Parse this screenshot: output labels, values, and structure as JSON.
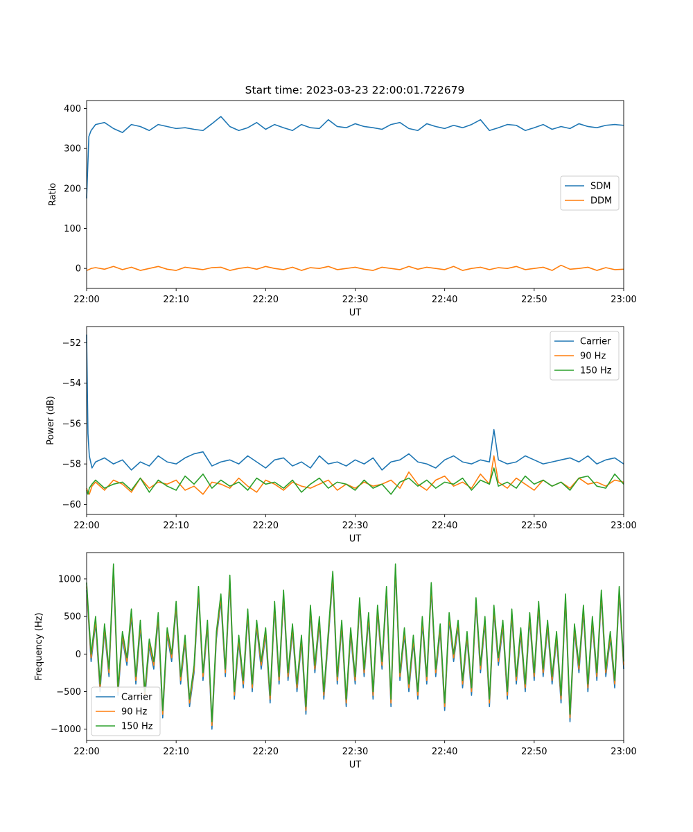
{
  "figure_title": "Start time: 2023-03-23 22:00:01.722679",
  "colors": {
    "blue": "#1f77b4",
    "orange": "#ff7f0e",
    "green": "#2ca02c"
  },
  "chart_data": [
    {
      "type": "line",
      "title": "Start time: 2023-03-23 22:00:01.722679",
      "xlabel": "UT",
      "ylabel": "Ratio",
      "xlim": [
        "22:00",
        "23:00"
      ],
      "ylim": [
        -50,
        420
      ],
      "xticks": [
        "22:00",
        "22:10",
        "22:20",
        "22:30",
        "22:40",
        "22:50",
        "23:00"
      ],
      "yticks": [
        0,
        100,
        200,
        300,
        400
      ],
      "ytick_labels": [
        "0",
        "100",
        "200",
        "300",
        "400"
      ],
      "legend_position": "center-right",
      "x_minutes": [
        0,
        0.25,
        0.5,
        1,
        2,
        3,
        4,
        5,
        6,
        7,
        8,
        9,
        10,
        11,
        12,
        13,
        14,
        15,
        16,
        17,
        18,
        19,
        20,
        21,
        22,
        23,
        24,
        25,
        26,
        27,
        28,
        29,
        30,
        31,
        32,
        33,
        34,
        35,
        36,
        37,
        38,
        39,
        40,
        41,
        42,
        43,
        44,
        45,
        46,
        47,
        48,
        49,
        50,
        51,
        52,
        53,
        54,
        55,
        56,
        57,
        58,
        59,
        60
      ],
      "series": [
        {
          "name": "SDM",
          "color": "#1f77b4",
          "values": [
            175,
            330,
            345,
            360,
            365,
            350,
            340,
            360,
            355,
            345,
            360,
            355,
            350,
            352,
            348,
            345,
            362,
            380,
            355,
            345,
            352,
            365,
            348,
            360,
            352,
            345,
            360,
            352,
            350,
            372,
            355,
            352,
            362,
            355,
            352,
            348,
            360,
            365,
            350,
            345,
            362,
            355,
            350,
            358,
            352,
            360,
            372,
            345,
            352,
            360,
            358,
            345,
            352,
            360,
            348,
            355,
            350,
            362,
            355,
            352,
            358,
            360,
            358
          ]
        },
        {
          "name": "DDM",
          "color": "#ff7f0e",
          "values": [
            -5,
            -3,
            0,
            2,
            -2,
            5,
            -3,
            3,
            -5,
            0,
            5,
            -2,
            -5,
            3,
            0,
            -3,
            2,
            3,
            -5,
            0,
            3,
            -2,
            5,
            0,
            -3,
            3,
            -5,
            2,
            0,
            5,
            -3,
            0,
            3,
            -2,
            -5,
            3,
            0,
            -3,
            5,
            -2,
            3,
            0,
            -3,
            5,
            -5,
            0,
            3,
            -3,
            2,
            0,
            5,
            -3,
            0,
            3,
            -5,
            8,
            -2,
            0,
            3,
            -5,
            2,
            -3,
            -2
          ]
        }
      ]
    },
    {
      "type": "line",
      "xlabel": "UT",
      "ylabel": "Power (dB)",
      "xlim": [
        "22:00",
        "23:00"
      ],
      "ylim": [
        -60.5,
        -51.2
      ],
      "xticks": [
        "22:00",
        "22:10",
        "22:20",
        "22:30",
        "22:40",
        "22:50",
        "23:00"
      ],
      "yticks": [
        -60,
        -58,
        -56,
        -54,
        -52
      ],
      "ytick_labels": [
        "−60",
        "−58",
        "−56",
        "−54",
        "−52"
      ],
      "legend_position": "top-right",
      "x_minutes": [
        0,
        0.15,
        0.3,
        0.6,
        1,
        2,
        3,
        4,
        5,
        6,
        7,
        8,
        9,
        10,
        11,
        12,
        13,
        14,
        15,
        16,
        17,
        18,
        19,
        20,
        21,
        22,
        23,
        24,
        25,
        26,
        27,
        28,
        29,
        30,
        31,
        32,
        33,
        34,
        35,
        36,
        37,
        38,
        39,
        40,
        41,
        42,
        43,
        44,
        45,
        45.5,
        46,
        47,
        48,
        49,
        50,
        51,
        52,
        53,
        54,
        55,
        56,
        57,
        58,
        59,
        60
      ],
      "series": [
        {
          "name": "Carrier",
          "color": "#1f77b4",
          "values": [
            -51.6,
            -56.5,
            -57.6,
            -58.2,
            -57.9,
            -57.7,
            -58.0,
            -57.8,
            -58.3,
            -57.9,
            -58.1,
            -57.6,
            -57.9,
            -58.0,
            -57.7,
            -57.5,
            -57.4,
            -58.1,
            -57.9,
            -57.8,
            -58.0,
            -57.6,
            -57.9,
            -58.2,
            -57.8,
            -57.7,
            -58.1,
            -57.9,
            -58.2,
            -57.6,
            -58.0,
            -57.9,
            -58.1,
            -57.8,
            -58.0,
            -57.7,
            -58.3,
            -57.9,
            -57.8,
            -57.5,
            -57.9,
            -58.0,
            -58.2,
            -57.8,
            -57.6,
            -57.9,
            -58.0,
            -57.8,
            -57.9,
            -56.3,
            -57.8,
            -58.0,
            -57.9,
            -57.6,
            -57.8,
            -58.0,
            -57.9,
            -57.8,
            -57.7,
            -57.9,
            -57.6,
            -58.0,
            -57.8,
            -57.7,
            -58.0
          ]
        },
        {
          "name": "90 Hz",
          "color": "#ff7f0e",
          "values": [
            -59.2,
            -59.4,
            -59.5,
            -59.1,
            -58.9,
            -59.3,
            -58.8,
            -59.0,
            -59.4,
            -58.7,
            -59.2,
            -58.9,
            -59.0,
            -58.8,
            -59.3,
            -59.1,
            -59.5,
            -58.9,
            -59.0,
            -59.2,
            -58.7,
            -59.1,
            -59.4,
            -58.8,
            -59.0,
            -59.3,
            -58.9,
            -59.1,
            -59.2,
            -59.0,
            -58.8,
            -59.3,
            -59.0,
            -59.2,
            -58.9,
            -59.1,
            -59.0,
            -58.8,
            -59.2,
            -58.4,
            -59.0,
            -59.3,
            -58.8,
            -58.6,
            -59.1,
            -58.9,
            -59.2,
            -58.5,
            -59.0,
            -57.6,
            -58.9,
            -59.2,
            -58.7,
            -59.0,
            -59.3,
            -58.8,
            -59.1,
            -58.9,
            -59.2,
            -58.7,
            -59.0,
            -58.9,
            -59.1,
            -58.8,
            -58.9
          ]
        },
        {
          "name": "150 Hz",
          "color": "#2ca02c",
          "values": [
            -59.3,
            -59.5,
            -59.2,
            -59.0,
            -58.8,
            -59.2,
            -59.0,
            -58.9,
            -59.3,
            -58.7,
            -59.4,
            -58.8,
            -59.1,
            -59.3,
            -58.6,
            -59.0,
            -58.5,
            -59.2,
            -58.8,
            -59.1,
            -58.9,
            -59.3,
            -58.7,
            -59.0,
            -58.9,
            -59.2,
            -58.8,
            -59.4,
            -59.0,
            -58.7,
            -59.2,
            -58.9,
            -59.0,
            -59.3,
            -58.8,
            -59.2,
            -59.0,
            -59.5,
            -58.9,
            -58.7,
            -59.1,
            -58.8,
            -59.2,
            -58.9,
            -59.0,
            -58.7,
            -59.3,
            -58.8,
            -59.0,
            -58.2,
            -59.1,
            -58.9,
            -59.2,
            -58.6,
            -59.0,
            -58.8,
            -59.1,
            -58.9,
            -59.3,
            -58.7,
            -58.6,
            -59.1,
            -59.2,
            -58.5,
            -59.0
          ]
        }
      ]
    },
    {
      "type": "line",
      "xlabel": "UT",
      "ylabel": "Frequency (Hz)",
      "xlim": [
        "22:00",
        "23:00"
      ],
      "ylim": [
        -1150,
        1350
      ],
      "xticks": [
        "22:00",
        "22:10",
        "22:20",
        "22:30",
        "22:40",
        "22:50",
        "23:00"
      ],
      "yticks": [
        -1000,
        -500,
        0,
        500,
        1000
      ],
      "ytick_labels": [
        "−1000",
        "−500",
        "0",
        "500",
        "1000"
      ],
      "legend_position": "bottom-left",
      "x_minutes": [
        0,
        0.5,
        1,
        1.5,
        2,
        2.5,
        3,
        3.5,
        4,
        4.5,
        5,
        5.5,
        6,
        6.5,
        7,
        7.5,
        8,
        8.5,
        9,
        9.5,
        10,
        10.5,
        11,
        11.5,
        12,
        12.5,
        13,
        13.5,
        14,
        14.5,
        15,
        15.5,
        16,
        16.5,
        17,
        17.5,
        18,
        18.5,
        19,
        19.5,
        20,
        20.5,
        21,
        21.5,
        22,
        22.5,
        23,
        23.5,
        24,
        24.5,
        25,
        25.5,
        26,
        26.5,
        27,
        27.5,
        28,
        28.5,
        29,
        29.5,
        30,
        30.5,
        31,
        31.5,
        32,
        32.5,
        33,
        33.5,
        34,
        34.5,
        35,
        35.5,
        36,
        36.5,
        37,
        37.5,
        38,
        38.5,
        39,
        39.5,
        40,
        40.5,
        41,
        41.5,
        42,
        42.5,
        43,
        43.5,
        44,
        44.5,
        45,
        45.5,
        46,
        46.5,
        47,
        47.5,
        48,
        48.5,
        49,
        49.5,
        50,
        50.5,
        51,
        51.5,
        52,
        52.5,
        53,
        53.5,
        54,
        54.5,
        55,
        55.5,
        56,
        56.5,
        57,
        57.5,
        58,
        58.5,
        59,
        59.5,
        60
      ],
      "series": [
        {
          "name": "Carrier",
          "color": "#1f77b4",
          "values": [
            850,
            -100,
            400,
            -500,
            300,
            -300,
            1100,
            -550,
            200,
            -150,
            500,
            -400,
            350,
            -600,
            100,
            -200,
            450,
            -850,
            250,
            -100,
            600,
            -400,
            150,
            -700,
            -250,
            800,
            -350,
            350,
            -1000,
            200,
            700,
            -300,
            950,
            -600,
            150,
            -450,
            500,
            -500,
            350,
            -200,
            250,
            -650,
            600,
            -400,
            750,
            -350,
            300,
            -500,
            150,
            -800,
            550,
            -250,
            400,
            -600,
            200,
            1000,
            -400,
            350,
            -700,
            250,
            -400,
            650,
            -300,
            450,
            -600,
            550,
            -200,
            800,
            -700,
            1100,
            -350,
            250,
            -500,
            150,
            -600,
            400,
            -400,
            850,
            -300,
            300,
            -750,
            450,
            -100,
            350,
            -450,
            200,
            -550,
            650,
            -250,
            400,
            -700,
            550,
            -150,
            350,
            -600,
            500,
            -400,
            250,
            -500,
            450,
            -350,
            600,
            -300,
            350,
            -400,
            200,
            -650,
            700,
            -900,
            300,
            -250,
            550,
            -500,
            400,
            -350,
            750,
            -300,
            200,
            -450,
            800,
            -200
          ]
        },
        {
          "name": "90 Hz",
          "color": "#ff7f0e",
          "values": [
            900,
            -50,
            450,
            -450,
            350,
            -250,
            1150,
            -500,
            250,
            -100,
            550,
            -350,
            400,
            -550,
            150,
            -150,
            500,
            -800,
            300,
            -50,
            650,
            -350,
            200,
            -650,
            -200,
            850,
            -300,
            400,
            -950,
            250,
            750,
            -250,
            1000,
            -550,
            200,
            -400,
            550,
            -450,
            400,
            -150,
            300,
            -600,
            650,
            -350,
            800,
            -300,
            350,
            -450,
            200,
            -750,
            600,
            -200,
            450,
            -550,
            250,
            1050,
            -350,
            400,
            -650,
            300,
            -350,
            700,
            -250,
            500,
            -550,
            600,
            -150,
            850,
            -650,
            1150,
            -300,
            300,
            -450,
            200,
            -550,
            450,
            -350,
            900,
            -250,
            350,
            -700,
            500,
            -50,
            400,
            -400,
            250,
            -500,
            700,
            -200,
            450,
            -650,
            600,
            -100,
            400,
            -550,
            550,
            -350,
            300,
            -450,
            500,
            -300,
            650,
            -250,
            400,
            -350,
            250,
            -600,
            750,
            -850,
            350,
            -200,
            600,
            -450,
            450,
            -300,
            800,
            -250,
            250,
            -400,
            850,
            -150
          ]
        },
        {
          "name": "150 Hz",
          "color": "#2ca02c",
          "values": [
            950,
            0,
            500,
            -400,
            400,
            -200,
            1200,
            -450,
            300,
            -50,
            600,
            -300,
            450,
            -500,
            200,
            -100,
            550,
            -750,
            350,
            0,
            700,
            -300,
            250,
            -600,
            -150,
            900,
            -250,
            450,
            -900,
            300,
            800,
            -200,
            1050,
            -500,
            250,
            -350,
            600,
            -400,
            450,
            -100,
            350,
            -550,
            700,
            -300,
            850,
            -250,
            400,
            -400,
            250,
            -700,
            650,
            -150,
            500,
            -500,
            300,
            1100,
            -300,
            450,
            -600,
            350,
            -300,
            750,
            -200,
            550,
            -500,
            650,
            -100,
            900,
            -600,
            1200,
            -250,
            350,
            -400,
            250,
            -500,
            500,
            -300,
            950,
            -200,
            400,
            -650,
            550,
            0,
            450,
            -350,
            300,
            -450,
            750,
            -150,
            500,
            -600,
            650,
            -50,
            450,
            -500,
            600,
            -300,
            350,
            -400,
            550,
            -250,
            700,
            -200,
            450,
            -300,
            300,
            -550,
            800,
            -800,
            400,
            -150,
            650,
            -400,
            500,
            -250,
            850,
            -200,
            300,
            -350,
            900,
            -100
          ]
        }
      ]
    }
  ]
}
